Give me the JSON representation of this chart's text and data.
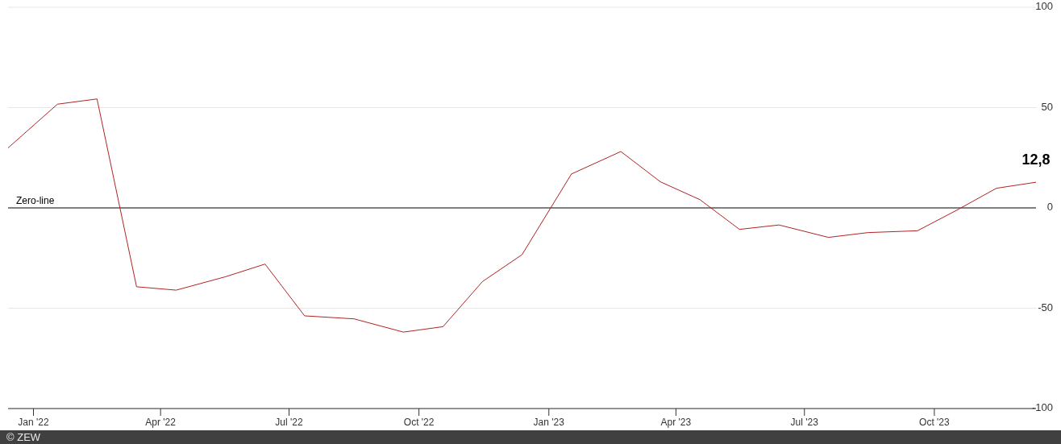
{
  "chart_data": {
    "type": "line",
    "x": [
      "2021-12-14",
      "2022-01-18",
      "2022-02-15",
      "2022-03-15",
      "2022-04-12",
      "2022-05-17",
      "2022-06-14",
      "2022-07-12",
      "2022-08-16",
      "2022-09-20",
      "2022-10-18",
      "2022-11-15",
      "2022-12-13",
      "2023-01-17",
      "2023-02-21",
      "2023-03-21",
      "2023-04-18",
      "2023-05-16",
      "2023-06-13",
      "2023-07-18",
      "2023-08-15",
      "2023-09-19",
      "2023-10-17",
      "2023-11-14",
      "2023-12-12"
    ],
    "series": [
      {
        "color": "#b22222",
        "values": [
          29.9,
          51.7,
          54.3,
          -39.3,
          -41.0,
          -34.3,
          -28.0,
          -53.8,
          -55.3,
          -61.9,
          -59.2,
          -36.7,
          -23.3,
          16.9,
          28.1,
          13.0,
          4.1,
          -10.7,
          -8.5,
          -14.7,
          -12.3,
          -11.4,
          -1.1,
          9.8,
          12.8
        ],
        "value_labels": [
          null,
          null,
          null,
          null,
          null,
          null,
          null,
          null,
          null,
          null,
          null,
          null,
          null,
          null,
          null,
          null,
          null,
          null,
          null,
          null,
          null,
          null,
          null,
          null,
          "12,8"
        ]
      }
    ],
    "xlim": [
      "2021-12-14",
      "2023-12-12"
    ],
    "xticks": [
      {
        "value": "2022-01-01",
        "label": "Jan '22"
      },
      {
        "value": "2022-04-01",
        "label": "Apr '22"
      },
      {
        "value": "2022-07-01",
        "label": "Jul '22"
      },
      {
        "value": "2022-10-01",
        "label": "Oct '22"
      },
      {
        "value": "2023-01-01",
        "label": "Jan '23"
      },
      {
        "value": "2023-04-01",
        "label": "Apr '23"
      },
      {
        "value": "2023-07-01",
        "label": "Jul '23"
      },
      {
        "value": "2023-10-01",
        "label": "Oct '23"
      }
    ],
    "ylim": [
      -100,
      100
    ],
    "yticks": [
      -100,
      -50,
      0,
      50,
      100
    ],
    "grid": "y",
    "ref_lines": [
      {
        "axis": "y",
        "value": 0,
        "label": "Zero-line",
        "color": "#808080"
      }
    ],
    "annotations": [
      "© ZEW"
    ],
    "marker": "none"
  }
}
